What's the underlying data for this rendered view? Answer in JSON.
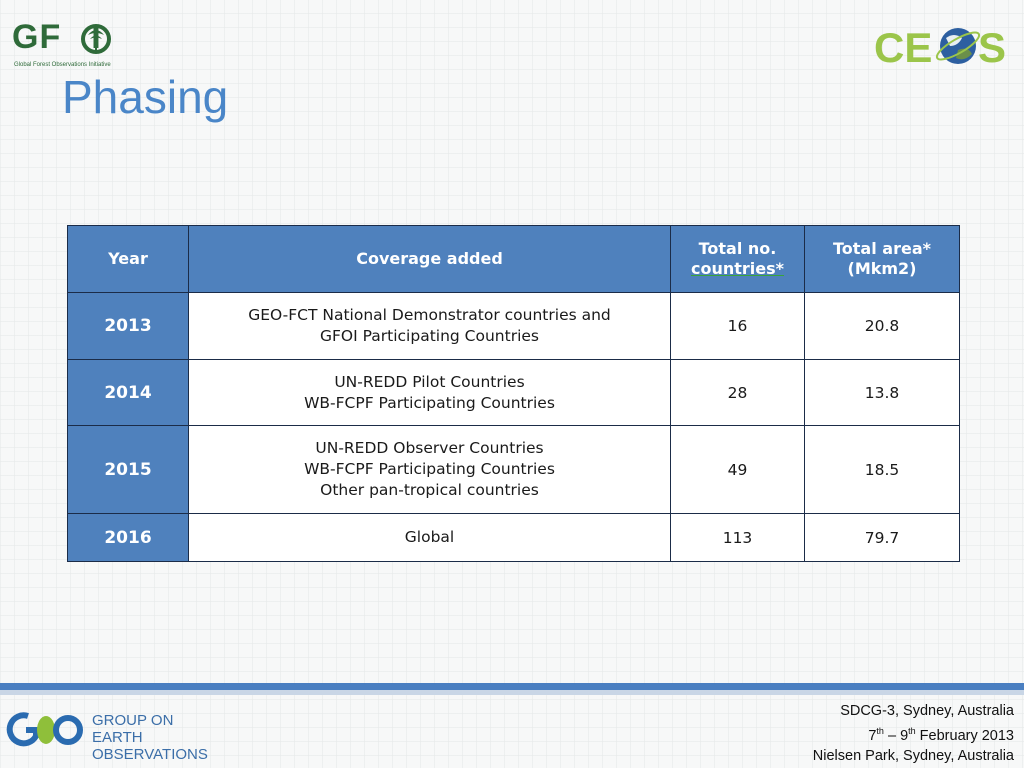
{
  "header": {
    "title": "Phasing",
    "gfoi_logo": {
      "word": "GF",
      "word_end": "I",
      "tagline": "Global Forest Observations Initiative",
      "icon": "tree-in-circle-icon"
    },
    "ceos_logo": {
      "text_left": "CE",
      "text_right": "S",
      "icon": "earth-globe-icon",
      "color": "#9bc54a"
    }
  },
  "table": {
    "headers": [
      "Year",
      "Coverage added",
      "Total no. countries*",
      "Total area* (Mkm2)"
    ],
    "rows": [
      {
        "year": "2013",
        "coverage": [
          "GEO-FCT National Demonstrator countries and",
          "GFOI Participating Countries"
        ],
        "countries": "16",
        "area": "20.8"
      },
      {
        "year": "2014",
        "coverage": [
          "UN-REDD Pilot Countries",
          "WB-FCPF Participating Countries"
        ],
        "countries": "28",
        "area": "13.8"
      },
      {
        "year": "2015",
        "coverage": [
          "UN-REDD Observer Countries",
          "WB-FCPF Participating Countries",
          "Other pan-tropical countries"
        ],
        "countries": "49",
        "area": "18.5"
      },
      {
        "year": "2016",
        "coverage": [
          "Global"
        ],
        "countries": "113",
        "area": "79.7"
      }
    ],
    "colors": {
      "header_bg": "#4f81bd",
      "border": "#1b2c48"
    }
  },
  "footer": {
    "geo_logo": {
      "mark": "GEO",
      "line1": "GROUP ON",
      "line2": "EARTH OBSERVATIONS"
    },
    "info": {
      "line1": "SDCG-3, Sydney, Australia",
      "line2_day1": "7",
      "line2_sup1": "th",
      "line2_dash": " – ",
      "line2_day2": "9",
      "line2_sup2": "th",
      "line2_rest": " February 2013",
      "line3": "Nielsen Park, Sydney, Australia"
    },
    "band_color": "#4a7fc1"
  }
}
